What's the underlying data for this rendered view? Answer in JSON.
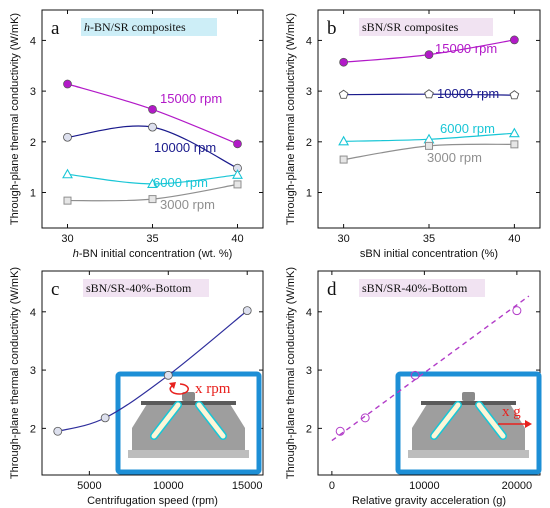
{
  "colors": {
    "s15000": "#b219c8",
    "s10000": "#1a1a8c",
    "s6000": "#19c6d6",
    "s3000": "#8f8f8f",
    "fit_line": "#2e2e9c",
    "dashed_fit": "#b23cc8",
    "title_bg_cyan": "#cdeef7",
    "title_bg_pink": "#f1e3f2",
    "inset_frame": "#1d8fd6",
    "arrow": "#e8211e"
  },
  "chart_data": [
    {
      "panel": "a",
      "type": "line",
      "title": "h-BN/SR composites",
      "title_parts": [
        {
          "t": "h",
          "i": true
        },
        {
          "t": "-BN/SR composites",
          "i": false
        }
      ],
      "xlabel": "h-BN initial concentration (wt. %)",
      "xlabel_parts": [
        {
          "t": "h",
          "i": true
        },
        {
          "t": "-BN initial concentration (wt. %)",
          "i": false
        }
      ],
      "ylabel": "Through-plane thermal conductivity (W/mK)",
      "xlim": [
        28.5,
        41.5
      ],
      "ylim": [
        0.3,
        4.6
      ],
      "xticks": [
        30,
        35,
        40
      ],
      "yticks": [
        1,
        2,
        3,
        4
      ],
      "x": [
        30,
        35,
        40
      ],
      "series": [
        {
          "name": "15000 rpm",
          "key": "s15000",
          "marker": "circle",
          "values": [
            3.14,
            2.64,
            1.96
          ]
        },
        {
          "name": "10000 rpm",
          "key": "s10000",
          "marker": "circle-open",
          "values": [
            2.09,
            2.29,
            1.48
          ]
        },
        {
          "name": "6000 rpm",
          "key": "s6000",
          "marker": "triangle",
          "values": [
            1.36,
            1.17,
            1.35
          ]
        },
        {
          "name": "3000 rpm",
          "key": "s3000",
          "marker": "square",
          "values": [
            0.84,
            0.87,
            1.16
          ]
        }
      ]
    },
    {
      "panel": "b",
      "type": "line",
      "title": "sBN/SR composites",
      "xlabel": "sBN initial concentration (%)",
      "ylabel": "Through-plane thermal conductivity (W/mK)",
      "xlim": [
        28.5,
        41.5
      ],
      "ylim": [
        0.3,
        4.6
      ],
      "xticks": [
        30,
        35,
        40
      ],
      "yticks": [
        1,
        2,
        3,
        4
      ],
      "x": [
        30,
        35,
        40
      ],
      "series": [
        {
          "name": "15000 rpm",
          "key": "s15000",
          "marker": "circle",
          "values": [
            3.57,
            3.72,
            4.01
          ]
        },
        {
          "name": "10000 rpm",
          "key": "s10000",
          "marker": "pentagon",
          "values": [
            2.93,
            2.94,
            2.92
          ]
        },
        {
          "name": "6000 rpm",
          "key": "s6000",
          "marker": "triangle",
          "values": [
            2.01,
            2.05,
            2.17
          ]
        },
        {
          "name": "3000 rpm",
          "key": "s3000",
          "marker": "square",
          "values": [
            1.65,
            1.92,
            1.95
          ]
        }
      ]
    },
    {
      "panel": "c",
      "type": "scatter",
      "title": "sBN/SR-40%-Bottom",
      "xlabel": "Centrifugation speed (rpm)",
      "ylabel": "Through-plane thermal conductivity (W/mK)",
      "xlim": [
        2000,
        16000
      ],
      "ylim": [
        1.2,
        4.7
      ],
      "xticks": [
        5000,
        10000,
        15000
      ],
      "yticks": [
        2,
        3,
        4
      ],
      "x": [
        3000,
        6000,
        10000,
        15000
      ],
      "values": [
        1.95,
        2.18,
        2.91,
        4.02
      ],
      "inset_label": "x rpm"
    },
    {
      "panel": "d",
      "type": "scatter",
      "title": "sBN/SR-40%-Bottom",
      "xlabel": "Relative gravity acceleration (g)",
      "ylabel": "Through-plane thermal conductivity (W/mK)",
      "xlim": [
        -1500,
        22500
      ],
      "ylim": [
        1.2,
        4.7
      ],
      "xticks": [
        0,
        10000,
        20000
      ],
      "yticks": [
        2,
        3,
        4
      ],
      "x": [
        900,
        3600,
        9000,
        20000
      ],
      "values": [
        1.95,
        2.18,
        2.91,
        4.02
      ],
      "fit_line": {
        "x": [
          0,
          21300
        ],
        "y": [
          1.79,
          4.27
        ]
      },
      "inset_label": "x g"
    }
  ]
}
